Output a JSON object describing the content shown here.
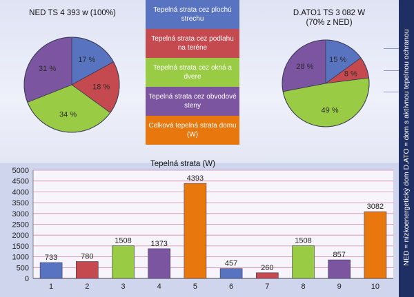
{
  "sidebar_note": "NED = nízkoenergetický dom D.ATO = dom s aktívnou tepelnou ochranou",
  "colors": {
    "blue": "#5874c0",
    "red": "#c44a4f",
    "green": "#99cc44",
    "purple": "#7b55a0",
    "orange": "#e8780e"
  },
  "legend": [
    {
      "label": "Tepelná strata cez plochú strechu",
      "color": "#5874c0"
    },
    {
      "label": "Tepelná strata cez podlahu na teréne",
      "color": "#c44a4f"
    },
    {
      "label": "Tepelná strata cez okná a dvere",
      "color": "#99cc44"
    },
    {
      "label": "Tepelná strata cez obvodové steny",
      "color": "#7b55a0"
    },
    {
      "label": "Celková tepelná strata domu (W)",
      "color": "#e8780e"
    }
  ],
  "chart_data": [
    {
      "type": "pie",
      "title": "NED TS 4 393 w (100%)",
      "slices": [
        {
          "label": "17 %",
          "value": 17,
          "color": "#5874c0"
        },
        {
          "label": "18 %",
          "value": 18,
          "color": "#c44a4f"
        },
        {
          "label": "34 %",
          "value": 34,
          "color": "#99cc44"
        },
        {
          "label": "31 %",
          "value": 31,
          "color": "#7b55a0"
        }
      ]
    },
    {
      "type": "pie",
      "title_line1": "D.ATO1 TS 3 082 W",
      "title_line2": "(70% z NED)",
      "slices": [
        {
          "label": "15 %",
          "value": 15,
          "color": "#5874c0"
        },
        {
          "label": "8 %",
          "value": 8,
          "color": "#c44a4f"
        },
        {
          "label": "49 %",
          "value": 49,
          "color": "#99cc44"
        },
        {
          "label": "28 %",
          "value": 28,
          "color": "#7b55a0"
        }
      ]
    },
    {
      "type": "bar",
      "title": "Tepelná strata (W)",
      "categories": [
        "1",
        "2",
        "3",
        "4",
        "5",
        "6",
        "7",
        "8",
        "9",
        "10"
      ],
      "values": [
        733,
        780,
        1508,
        1373,
        4393,
        457,
        260,
        1508,
        857,
        3082
      ],
      "colors": [
        "#5874c0",
        "#c44a4f",
        "#99cc44",
        "#7b55a0",
        "#e8780e",
        "#5874c0",
        "#c44a4f",
        "#99cc44",
        "#7b55a0",
        "#e8780e"
      ],
      "yticks": [
        0,
        500,
        1000,
        1500,
        2000,
        2500,
        3000,
        3500,
        4000,
        4500,
        5000
      ],
      "ylim": [
        0,
        5000
      ],
      "grid": true
    }
  ]
}
